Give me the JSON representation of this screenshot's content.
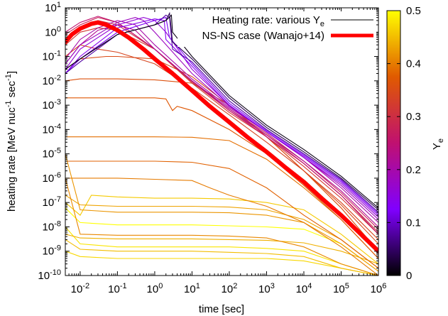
{
  "chart_data": {
    "type": "line",
    "x_scale": "log",
    "y_scale": "log",
    "xlim": [
      0.004,
      1000000
    ],
    "ylim": [
      1e-10,
      10
    ],
    "xlabel": "time [sec]",
    "ylabel": "heating rate [MeV nuc^-1 sec^-1]",
    "ylabel_parts": {
      "base": "heating rate [MeV nuc",
      "sup1": "-1",
      "mid": " sec",
      "sup2": "-1",
      "end": "]"
    },
    "x_tick_exponents": [
      -2,
      -1,
      0,
      1,
      2,
      3,
      4,
      5,
      6
    ],
    "y_tick_exponents": [
      1,
      0,
      -1,
      -2,
      -3,
      -4,
      -5,
      -6,
      -7,
      -8,
      -9,
      -10
    ],
    "colorbar": {
      "label_base": "Y",
      "label_sub": "e",
      "range": [
        0,
        0.5
      ],
      "ticks": [
        "0",
        "0.1",
        "0.2",
        "0.3",
        "0.4",
        "0.5"
      ],
      "colors": [
        "#000000",
        "#8000ff",
        "#c01070",
        "#e05a00",
        "#ffff00"
      ]
    },
    "legend": {
      "placement": "top-right",
      "entries": [
        {
          "label": "Heating rate: various Y",
          "label_sub": "e",
          "color": "#000000"
        },
        {
          "label": "NS-NS case (Wanajo+14)",
          "color": "#ff0000"
        }
      ]
    },
    "series": [
      {
        "ye": 0.5,
        "x": [
          0.004,
          0.01,
          0.1,
          1,
          10,
          100,
          1000,
          10000,
          100000,
          1000000
        ],
        "y": [
          6e-08,
          1.5e-08,
          1.2e-08,
          1.2e-08,
          1.2e-08,
          1.1e-08,
          1e-08,
          8e-09,
          2e-09,
          1.5e-10
        ]
      },
      {
        "ye": 0.48,
        "x": [
          0.004,
          0.01,
          0.1,
          1,
          10,
          100,
          1000,
          10000,
          100000,
          1000000
        ],
        "y": [
          1e-08,
          2e-09,
          1.5e-09,
          1.5e-09,
          1.5e-09,
          1.5e-09,
          1.3e-09,
          1e-09,
          3e-10,
          1e-10
        ]
      },
      {
        "ye": 0.47,
        "x": [
          0.004,
          0.01,
          0.1,
          1,
          10,
          100,
          1000,
          10000,
          100000,
          1000000
        ],
        "y": [
          1e-09,
          6e-10,
          5e-10,
          5e-10,
          5e-10,
          5e-10,
          5e-10,
          4e-10,
          2e-10,
          1e-10
        ]
      },
      {
        "ye": 0.46,
        "x": [
          0.004,
          0.01,
          0.02,
          0.1,
          1,
          10,
          100,
          1000,
          10000,
          100000,
          1000000
        ],
        "y": [
          1e-07,
          3e-08,
          2e-07,
          1.7e-07,
          1.5e-07,
          1.5e-07,
          1.4e-07,
          1e-07,
          5e-08,
          5e-09,
          3e-10
        ]
      },
      {
        "ye": 0.45,
        "x": [
          0.004,
          0.01,
          0.1,
          1,
          10,
          100,
          1000,
          10000,
          100000,
          1000000
        ],
        "y": [
          3e-09,
          1.2e-09,
          1e-09,
          1e-09,
          1e-09,
          9e-10,
          8e-10,
          6e-10,
          2e-10,
          1e-10
        ]
      },
      {
        "ye": 0.44,
        "x": [
          0.004,
          0.01,
          0.1,
          1,
          10,
          100,
          1000,
          10000,
          100000,
          1000000
        ],
        "y": [
          5e-09,
          3.5e-09,
          3.2e-09,
          3.2e-09,
          3.2e-09,
          3e-09,
          2.8e-09,
          2.2e-09,
          1e-09,
          3e-10
        ]
      },
      {
        "ye": 0.43,
        "x": [
          0.004,
          0.01,
          0.1,
          1,
          10,
          100,
          1000,
          10000,
          100000,
          1000000
        ],
        "y": [
          2e-07,
          8e-08,
          7e-08,
          7e-08,
          7e-08,
          6.5e-08,
          5e-08,
          2e-08,
          3e-09,
          2e-10
        ]
      },
      {
        "ye": 0.42,
        "x": [
          0.004,
          0.01,
          0.1,
          1,
          10,
          100,
          1000,
          10000,
          100000,
          1000000
        ],
        "y": [
          1e-05,
          5e-08,
          4e-08,
          4e-08,
          4e-08,
          3.8e-08,
          3e-08,
          1.5e-08,
          2e-09,
          1.5e-10
        ]
      },
      {
        "ye": 0.41,
        "x": [
          0.004,
          0.01,
          0.1,
          1,
          10,
          100,
          1000,
          10000,
          100000,
          1000000
        ],
        "y": [
          1e-06,
          5e-09,
          4.5e-09,
          4.5e-09,
          4.5e-09,
          4.2e-09,
          3.5e-09,
          1.5e-09,
          3e-10,
          1e-10
        ]
      },
      {
        "ye": 0.4,
        "x": [
          0.004,
          0.01,
          0.1,
          1,
          10,
          30,
          100,
          1000,
          10000,
          100000,
          1000000
        ],
        "y": [
          1e-06,
          1e-06,
          1e-06,
          9e-07,
          8e-07,
          4e-07,
          2e-07,
          7e-08,
          1.5e-08,
          1.5e-09,
          1e-10
        ]
      },
      {
        "ye": 0.39,
        "x": [
          0.004,
          0.01,
          0.1,
          1,
          10,
          100,
          1000,
          10000,
          100000,
          1000000
        ],
        "y": [
          5e-05,
          5e-05,
          5e-05,
          5e-05,
          4.8e-05,
          3.5e-05,
          6e-06,
          4e-07,
          2e-08,
          5e-10
        ]
      },
      {
        "ye": 0.38,
        "x": [
          0.004,
          0.01,
          0.1,
          1,
          10,
          100,
          1000,
          10000,
          100000,
          1000000
        ],
        "y": [
          5e-06,
          5e-06,
          5e-06,
          5e-06,
          4.5e-06,
          2.5e-06,
          4e-07,
          3e-08,
          3e-09,
          2e-10
        ]
      },
      {
        "ye": 0.37,
        "x": [
          0.004,
          0.01,
          0.1,
          1,
          2,
          3,
          4,
          10,
          100,
          1000,
          10000,
          100000,
          1000000
        ],
        "y": [
          0.002,
          0.002,
          0.002,
          0.002,
          0.0018,
          0.0006,
          0.0009,
          0.0006,
          0.0001,
          1e-05,
          5e-07,
          2e-08,
          5e-10
        ]
      },
      {
        "ye": 0.36,
        "x": [
          0.004,
          0.01,
          0.1,
          1,
          10,
          100,
          1000,
          10000,
          100000,
          1000000
        ],
        "y": [
          0.01,
          0.012,
          0.012,
          0.011,
          0.008,
          0.001,
          5e-05,
          2e-06,
          6e-08,
          1e-09
        ]
      },
      {
        "ye": 0.35,
        "x": [
          0.004,
          0.01,
          0.05,
          0.1,
          1,
          10,
          100,
          1000,
          10000,
          100000,
          1000000
        ],
        "y": [
          0.03,
          0.08,
          0.1,
          0.1,
          0.08,
          0.015,
          0.001,
          5e-05,
          2e-06,
          8e-08,
          2e-09
        ]
      },
      {
        "ye": 0.34,
        "x": [
          0.004,
          0.01,
          0.03,
          0.1,
          1,
          10,
          100,
          1000,
          10000,
          100000,
          1000000
        ],
        "y": [
          0.1,
          0.3,
          0.2,
          0.15,
          0.05,
          0.005,
          0.0004,
          3e-05,
          2e-06,
          1e-07,
          3e-09
        ]
      },
      {
        "ye": 0.32,
        "x": [
          0.004,
          0.01,
          0.03,
          0.1,
          1,
          10,
          100,
          1000,
          10000,
          100000,
          1000000
        ],
        "y": [
          0.3,
          1,
          1.5,
          1.2,
          0.2,
          0.008,
          0.0005,
          5e-05,
          3e-06,
          1.5e-07,
          5e-09
        ]
      },
      {
        "ye": 0.3,
        "x": [
          0.004,
          0.01,
          0.03,
          0.1,
          1,
          10,
          100,
          1000,
          10000,
          100000,
          1000000
        ],
        "y": [
          0.5,
          1.5,
          3,
          2,
          0.2,
          0.009,
          0.0006,
          6e-05,
          4e-06,
          2e-07,
          6e-09
        ]
      },
      {
        "ye": 0.28,
        "x": [
          0.004,
          0.01,
          0.03,
          0.1,
          1,
          10,
          100,
          1000,
          10000,
          100000,
          1000000
        ],
        "y": [
          0.8,
          2,
          4,
          2.5,
          0.2,
          0.01,
          0.0007,
          7e-05,
          5e-06,
          2.5e-07,
          8e-09
        ]
      },
      {
        "ye": 0.25,
        "x": [
          0.004,
          0.01,
          0.03,
          0.1,
          1,
          10,
          100,
          1000,
          10000,
          100000,
          1000000
        ],
        "y": [
          1,
          2.5,
          4.5,
          2.5,
          0.2,
          0.01,
          0.0006,
          5e-05,
          4e-06,
          2e-07,
          5e-09
        ]
      },
      {
        "ye": 0.22,
        "x": [
          0.004,
          0.01,
          0.03,
          0.1,
          0.3,
          1,
          10,
          100,
          1000,
          10000,
          100000,
          1000000
        ],
        "y": [
          0.05,
          0.3,
          1.2,
          2,
          1.2,
          0.2,
          0.01,
          0.0007,
          6e-05,
          5e-06,
          3e-07,
          1e-08
        ]
      },
      {
        "ye": 0.2,
        "x": [
          0.004,
          0.01,
          0.03,
          0.1,
          0.3,
          1,
          10,
          100,
          1000,
          10000,
          100000,
          1000000
        ],
        "y": [
          0.08,
          0.5,
          1.5,
          3,
          2,
          0.3,
          0.012,
          0.0008,
          8e-05,
          7e-06,
          4e-07,
          1.5e-08
        ]
      },
      {
        "ye": 0.18,
        "x": [
          0.004,
          0.01,
          0.1,
          0.3,
          0.5,
          1,
          10,
          100,
          1000,
          10000,
          100000,
          1000000
        ],
        "y": [
          0.05,
          0.3,
          2.5,
          4,
          3,
          1,
          0.02,
          0.0009,
          8e-05,
          7e-06,
          5e-07,
          2e-08
        ]
      },
      {
        "ye": 0.16,
        "x": [
          0.004,
          0.01,
          0.1,
          0.5,
          1,
          2,
          10,
          100,
          1000,
          10000,
          100000,
          1000000
        ],
        "y": [
          0.03,
          0.2,
          2,
          4,
          3,
          1,
          0.03,
          0.001,
          8e-05,
          7e-06,
          6e-07,
          2.5e-08
        ]
      },
      {
        "ye": 0.14,
        "x": [
          0.004,
          0.01,
          0.1,
          1,
          1.8,
          2,
          10,
          100,
          1000,
          10000,
          100000,
          1000000
        ],
        "y": [
          0.02,
          0.1,
          1.5,
          3.5,
          3,
          0.5,
          0.04,
          0.001,
          8e-05,
          8e-06,
          7e-07,
          3e-08
        ]
      },
      {
        "ye": 0.12,
        "x": [
          0.004,
          0.01,
          0.1,
          1,
          2,
          2.5,
          10,
          100,
          1000,
          10000,
          100000,
          1000000
        ],
        "y": [
          0.02,
          0.08,
          1,
          3,
          4,
          0.6,
          0.05,
          0.0012,
          9e-05,
          9e-06,
          8e-07,
          3.5e-08
        ]
      },
      {
        "ye": 0.08,
        "x": [
          0.004,
          0.01,
          0.1,
          1,
          2,
          2.5,
          3,
          10,
          100,
          1000,
          10000,
          100000,
          1000000
        ],
        "y": [
          0.02,
          0.06,
          0.8,
          2,
          5,
          4,
          0.2,
          0.06,
          0.0015,
          0.0001,
          1e-05,
          9e-07,
          4e-08
        ]
      },
      {
        "ye": 0.04,
        "x": [
          0.004,
          0.01,
          0.1,
          1,
          2,
          2.5,
          3,
          10,
          100,
          1000,
          10000,
          100000,
          1000000
        ],
        "y": [
          0.03,
          0.08,
          0.8,
          2,
          3,
          6,
          0.4,
          0.08,
          0.002,
          0.00012,
          1.2e-05,
          1e-06,
          5e-08
        ]
      },
      {
        "ye": 0.01,
        "x": [
          0.004,
          0.01,
          0.1,
          1,
          2,
          2.8,
          3,
          10,
          100,
          1000,
          10000,
          100000,
          1000000
        ],
        "y": [
          0.03,
          0.08,
          0.8,
          2,
          3,
          5,
          1,
          0.1,
          0.0025,
          0.00015,
          1.5e-05,
          1.2e-06,
          6e-08
        ]
      }
    ],
    "wanajo": {
      "x": [
        0.004,
        0.006,
        0.01,
        0.02,
        0.03,
        0.05,
        0.1,
        0.2,
        0.5,
        1,
        3,
        10,
        30,
        100,
        300,
        1000,
        3000,
        10000,
        30000,
        100000,
        300000,
        1000000
      ],
      "y": [
        0.4,
        0.8,
        1.4,
        2.2,
        2.5,
        2.0,
        1.2,
        0.6,
        0.2,
        0.08,
        0.02,
        0.004,
        0.0009,
        0.0002,
        5e-05,
        1.2e-05,
        3e-06,
        7e-07,
        1.5e-07,
        3e-08,
        6e-09,
        1e-09
      ]
    }
  }
}
